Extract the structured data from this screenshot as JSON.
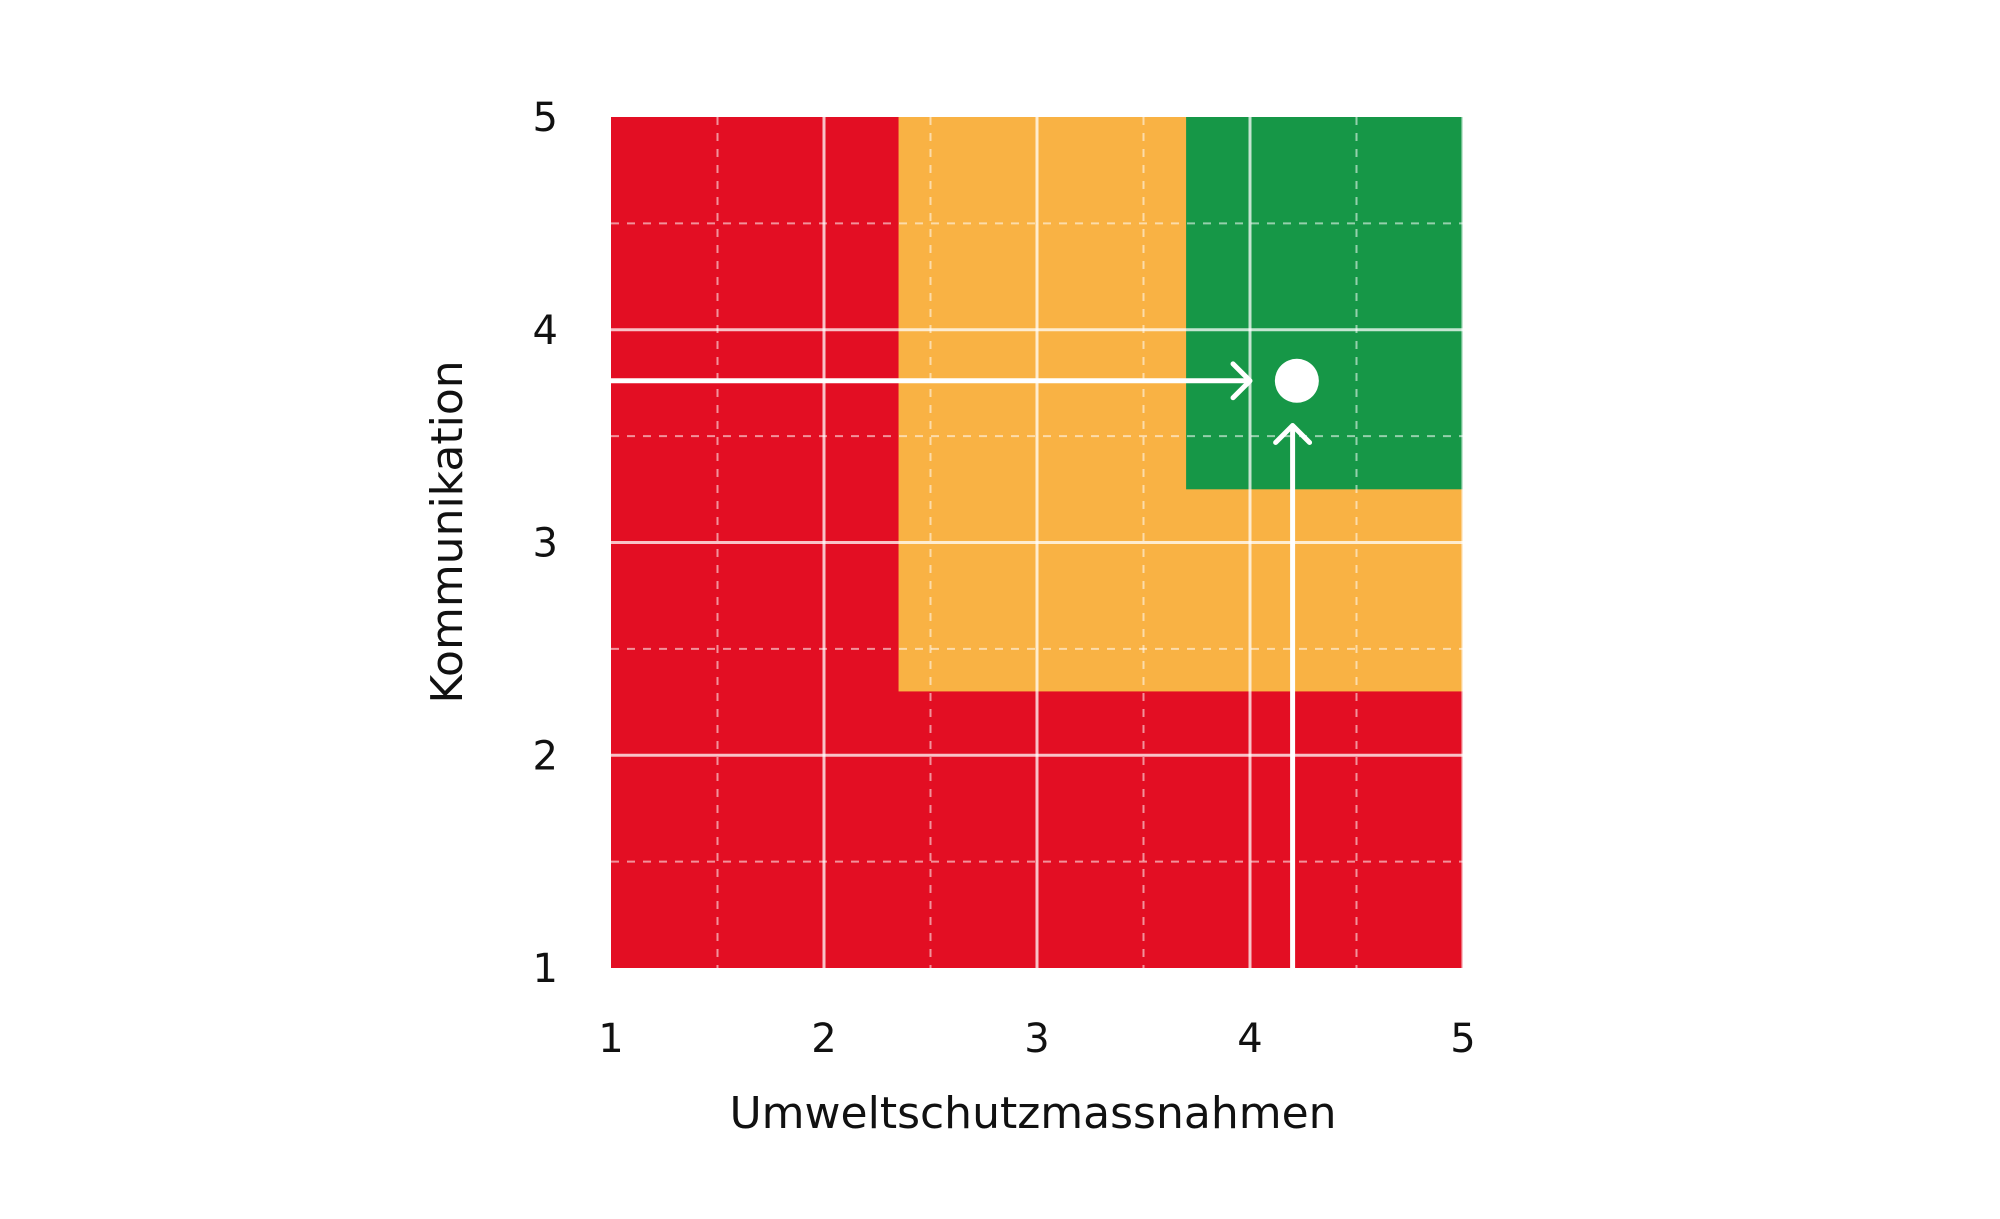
{
  "chart_data": {
    "type": "heatmap",
    "title": "",
    "xlabel": "Umweltschutzmassnahmen",
    "ylabel": "Kommunikation",
    "xlim": [
      1,
      5
    ],
    "ylim": [
      1,
      5
    ],
    "x_ticks": [
      "1",
      "2",
      "3",
      "4",
      "5"
    ],
    "y_ticks": [
      "1",
      "2",
      "3",
      "4",
      "5"
    ],
    "grid": true,
    "grid_minor": true,
    "zones": [
      {
        "name": "red",
        "color": "#e30e23",
        "x": [
          1,
          5
        ],
        "y": [
          1,
          5
        ]
      },
      {
        "name": "orange",
        "color": "#f9b244",
        "x": [
          2.35,
          5
        ],
        "y": [
          2.3,
          5
        ]
      },
      {
        "name": "green",
        "color": "#169747",
        "x": [
          3.7,
          5
        ],
        "y": [
          3.25,
          5
        ]
      }
    ],
    "point": {
      "x": 4.22,
      "y": 3.76,
      "color": "#ffffff"
    },
    "arrows": [
      {
        "from": [
          1,
          3.76
        ],
        "to": [
          4.0,
          3.76
        ]
      },
      {
        "from": [
          4.2,
          1
        ],
        "to": [
          4.2,
          3.55
        ]
      }
    ]
  }
}
